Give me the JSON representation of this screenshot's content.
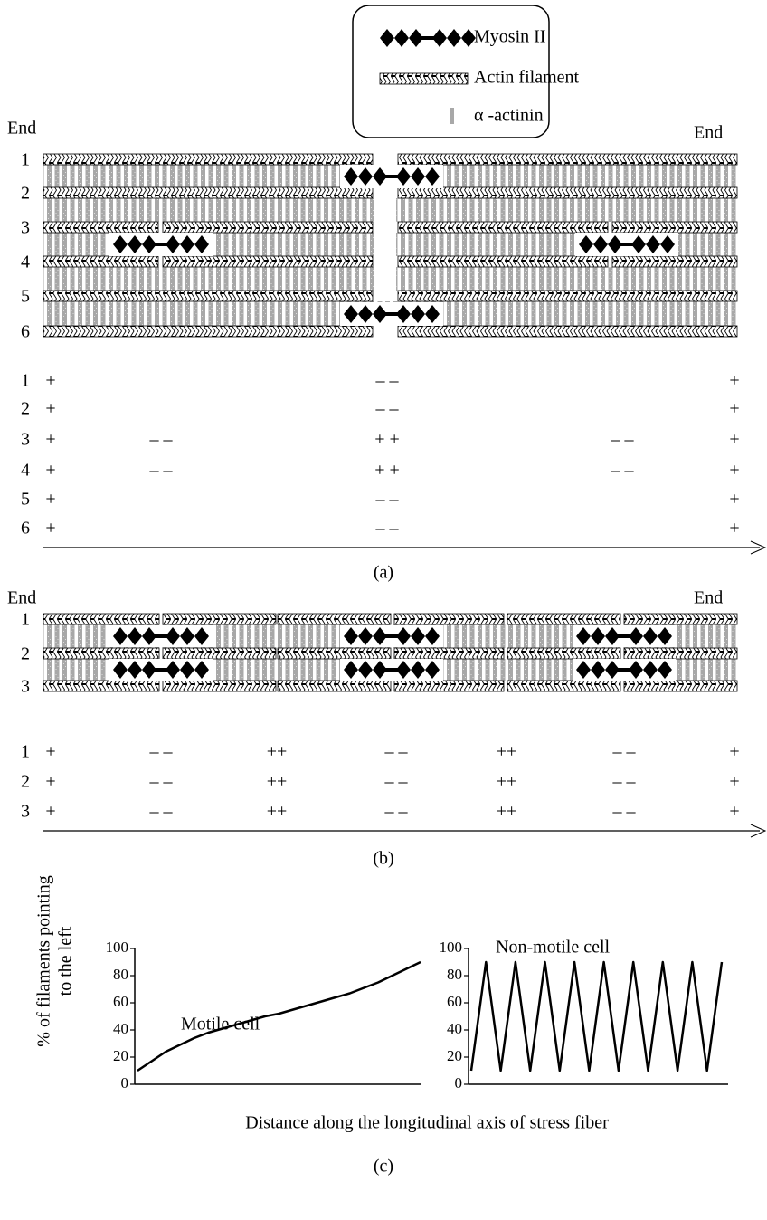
{
  "legend": {
    "items": [
      "Myosin II",
      "Actin filament",
      "α -actinin"
    ]
  },
  "panel_a": {
    "end_left": "End",
    "end_right": "End",
    "row_labels": [
      "1",
      "2",
      "3",
      "4",
      "5",
      "6"
    ],
    "polarity": [
      [
        "+",
        "– –",
        "+"
      ],
      [
        "+",
        "– –",
        "+"
      ],
      [
        "+",
        "– –",
        "+ +",
        "– –",
        "+"
      ],
      [
        "+",
        "– –",
        "+ +",
        "– –",
        "+"
      ],
      [
        "+",
        "– –",
        "+"
      ],
      [
        "+",
        "– –",
        "+"
      ]
    ],
    "caption": "(a)"
  },
  "panel_b": {
    "end_left": "End",
    "end_right": "End",
    "row_labels": [
      "1",
      "2",
      "3"
    ],
    "polarity": [
      [
        "+",
        "– –",
        "++",
        "– –",
        "++",
        "– –",
        "+"
      ],
      [
        "+",
        "– –",
        "++",
        "– –",
        "++",
        "– –",
        "+"
      ],
      [
        "+",
        "– –",
        "++",
        "– –",
        "++",
        "– –",
        "+"
      ]
    ],
    "caption": "(b)"
  },
  "panel_c": {
    "y_label": [
      "% of filaments pointing",
      "to the left"
    ],
    "x_label": "Distance along the longitudinal axis of stress fiber",
    "caption": "(c)"
  },
  "chart_data": [
    {
      "type": "line",
      "title": "Motile cell",
      "color": "#000000",
      "ylim": [
        0,
        100
      ],
      "yticks": [
        0,
        20,
        40,
        60,
        80,
        100
      ],
      "values": [
        10,
        17,
        24,
        29,
        34,
        38,
        41,
        44,
        47,
        50,
        52,
        55,
        58,
        61,
        64,
        67,
        71,
        75,
        80,
        85,
        90
      ]
    },
    {
      "type": "line",
      "title": "Non-motile cell",
      "color": "#000000",
      "ylim": [
        0,
        100
      ],
      "yticks": [
        0,
        20,
        40,
        60,
        80,
        100
      ],
      "values": [
        10,
        90,
        10,
        90,
        10,
        90,
        10,
        90,
        10,
        90,
        10,
        90,
        10,
        90,
        10,
        90,
        10,
        90
      ]
    }
  ]
}
